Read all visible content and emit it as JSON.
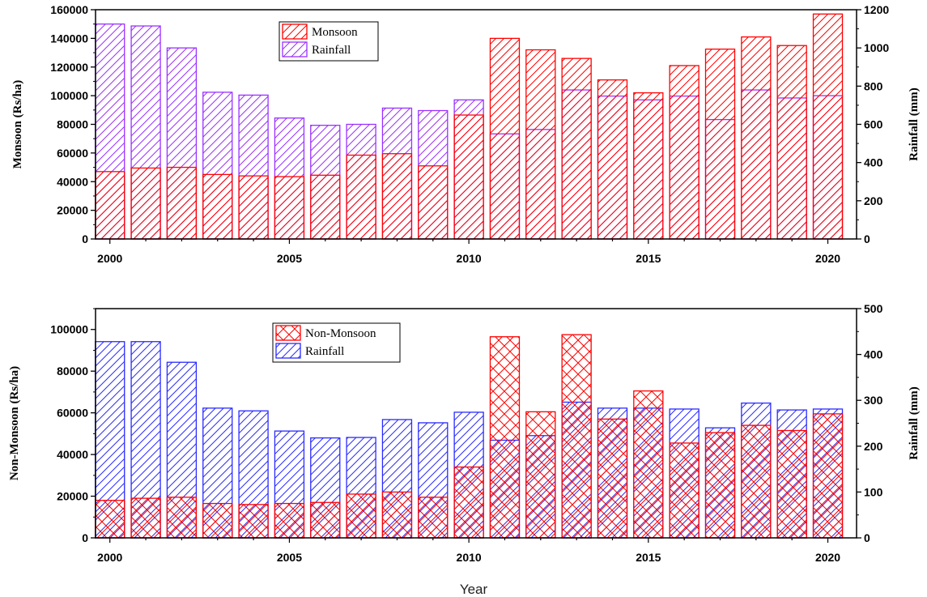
{
  "colors": {
    "red": "#ff0000",
    "purple": "#9b30ff",
    "blue": "#2b2bff"
  },
  "xlabel": "Year",
  "chart_data": [
    {
      "type": "bar",
      "title": "",
      "ylabel_left": "Monsoon (Rs/ha)",
      "ylabel_right": "Rainfall (mm)",
      "ylim_left": [
        0,
        160000
      ],
      "ylim_right": [
        0,
        1200
      ],
      "yticks_left": [
        "0",
        "20000",
        "40000",
        "60000",
        "80000",
        "100000",
        "120000",
        "140000",
        "160000"
      ],
      "yticks_right": [
        "0",
        "200",
        "400",
        "600",
        "800",
        "1000",
        "1200"
      ],
      "x_tick_labels": [
        "2000",
        "2005",
        "2010",
        "2015",
        "2020"
      ],
      "x": [
        2000,
        2001,
        2002,
        2003,
        2004,
        2005,
        2006,
        2007,
        2008,
        2009,
        2010,
        2011,
        2012,
        2013,
        2014,
        2015,
        2016,
        2017,
        2018,
        2019,
        2020
      ],
      "legend": [
        "Monsoon",
        "Rainfall"
      ],
      "legend_position": "top-center",
      "series": [
        {
          "name": "Monsoon",
          "axis": "left",
          "color": "#ff0000",
          "values": [
            47000,
            49500,
            50000,
            45000,
            44000,
            43500,
            44500,
            58500,
            59500,
            51000,
            86500,
            140000,
            132000,
            126000,
            111000,
            102000,
            121000,
            132500,
            141000,
            135000,
            157000
          ]
        },
        {
          "name": "Rainfall",
          "axis": "right",
          "color": "#9b30ff",
          "values": [
            1125,
            1115,
            1000,
            768,
            753,
            633,
            595,
            600,
            685,
            672,
            728,
            550,
            573,
            780,
            748,
            728,
            748,
            625,
            780,
            738,
            750
          ]
        }
      ]
    },
    {
      "type": "bar",
      "title": "",
      "ylabel_left": "Non-Monsoon (Rs/ha)",
      "ylabel_right": "Rainfall (mm)",
      "ylim_left": [
        0,
        110000
      ],
      "ylim_right": [
        0,
        500
      ],
      "yticks_left": [
        "0",
        "20000",
        "40000",
        "60000",
        "80000",
        "100000"
      ],
      "yticks_right": [
        "0",
        "100",
        "200",
        "300",
        "400",
        "500"
      ],
      "x_tick_labels": [
        "2000",
        "2005",
        "2010",
        "2015",
        "2020"
      ],
      "x": [
        2000,
        2001,
        2002,
        2003,
        2004,
        2005,
        2006,
        2007,
        2008,
        2009,
        2010,
        2011,
        2012,
        2013,
        2014,
        2015,
        2016,
        2017,
        2018,
        2019,
        2020
      ],
      "legend": [
        "Non-Monsoon",
        "Rainfall"
      ],
      "legend_position": "top-center",
      "series": [
        {
          "name": "Non-Monsoon",
          "axis": "left",
          "color": "#ff0000",
          "values": [
            18000,
            19000,
            19500,
            16500,
            16000,
            16500,
            17000,
            21000,
            22000,
            19500,
            34000,
            96500,
            60500,
            97500,
            57000,
            70500,
            45500,
            50500,
            54000,
            51500,
            59500
          ]
        },
        {
          "name": "Rainfall",
          "axis": "right",
          "color": "#2b2bff",
          "values": [
            428,
            428,
            383,
            283,
            277,
            233,
            218,
            219,
            258,
            251,
            274,
            213,
            223,
            296,
            283,
            283,
            281,
            240,
            294,
            279,
            281
          ]
        }
      ]
    }
  ]
}
